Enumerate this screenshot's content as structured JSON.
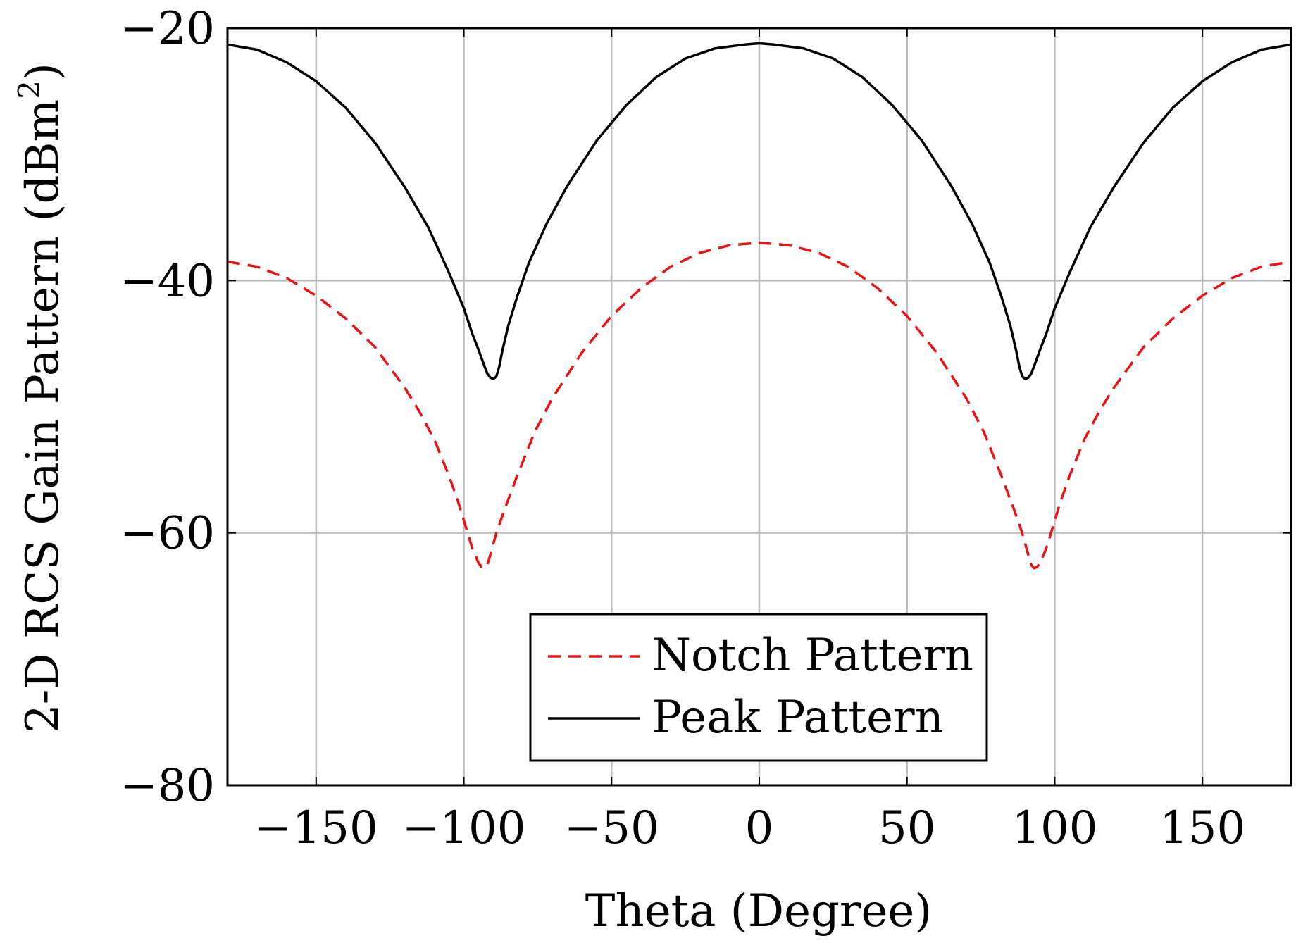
{
  "chart_data": {
    "type": "line",
    "title": "",
    "xlabel": "Theta (Degree)",
    "ylabel": "2-D RCS Gain Pattern (dBm",
    "ylabel_superscript": "2",
    "ylabel_close": ")",
    "xlim": [
      -180,
      180
    ],
    "ylim": [
      -80,
      -20
    ],
    "grid": true,
    "legend_position": "bottom-center",
    "xticks": [
      -150,
      -100,
      -50,
      0,
      50,
      100,
      150
    ],
    "xtick_labels": [
      "−150",
      "−100",
      "−50",
      "0",
      "50",
      "100",
      "150"
    ],
    "yticks": [
      -80,
      -60,
      -40,
      -20
    ],
    "ytick_labels": [
      "−80",
      "−60",
      "−40",
      "−20"
    ],
    "series": [
      {
        "name": "Notch Pattern",
        "color": "#ee1111",
        "style": "dashed",
        "x": [
          -180,
          -170,
          -160,
          -150,
          -140,
          -130,
          -120,
          -115,
          -110,
          -105,
          -102,
          -99,
          -97,
          -95,
          -94,
          -93,
          -92,
          -91,
          -89,
          -86,
          -82,
          -76,
          -70,
          -60,
          -50,
          -40,
          -30,
          -20,
          -10,
          0,
          10,
          20,
          30,
          40,
          50,
          60,
          70,
          76,
          82,
          86,
          89,
          91,
          92,
          93,
          94,
          95,
          97,
          99,
          102,
          105,
          110,
          115,
          120,
          130,
          140,
          150,
          160,
          170,
          180
        ],
        "y": [
          -38.5,
          -38.9,
          -39.8,
          -41.2,
          -43.0,
          -45.3,
          -48.5,
          -50.4,
          -52.6,
          -55.5,
          -57.5,
          -59.8,
          -61.3,
          -62.4,
          -62.7,
          -62.8,
          -62.5,
          -61.7,
          -60.0,
          -58.0,
          -55.5,
          -52.0,
          -49.3,
          -45.7,
          -42.8,
          -40.6,
          -38.9,
          -37.8,
          -37.2,
          -37.0,
          -37.2,
          -37.8,
          -38.9,
          -40.6,
          -42.8,
          -45.7,
          -49.3,
          -52.0,
          -55.5,
          -58.0,
          -60.0,
          -61.7,
          -62.5,
          -62.8,
          -62.7,
          -62.4,
          -61.3,
          -59.8,
          -57.5,
          -55.5,
          -52.6,
          -50.4,
          -48.5,
          -45.3,
          -43.0,
          -41.2,
          -39.8,
          -38.9,
          -38.5
        ]
      },
      {
        "name": "Peak Pattern",
        "color": "#000000",
        "style": "solid",
        "x": [
          -180,
          -170,
          -160,
          -150,
          -140,
          -130,
          -120,
          -112,
          -105,
          -100,
          -97,
          -95,
          -93,
          -92,
          -91,
          -90,
          -89,
          -88,
          -87,
          -85,
          -82,
          -78,
          -72,
          -65,
          -55,
          -45,
          -35,
          -25,
          -15,
          -5,
          0,
          5,
          15,
          25,
          35,
          45,
          55,
          65,
          72,
          78,
          82,
          85,
          87,
          88,
          89,
          90,
          91,
          92,
          93,
          95,
          97,
          100,
          105,
          112,
          120,
          130,
          140,
          150,
          160,
          170,
          180
        ],
        "y": [
          -21.3,
          -21.7,
          -22.7,
          -24.2,
          -26.3,
          -29.1,
          -32.6,
          -35.8,
          -39.4,
          -42.2,
          -44.3,
          -45.5,
          -46.8,
          -47.4,
          -47.7,
          -47.8,
          -47.6,
          -46.8,
          -45.6,
          -43.6,
          -41.3,
          -38.6,
          -35.5,
          -32.5,
          -28.9,
          -26.1,
          -23.9,
          -22.4,
          -21.6,
          -21.3,
          -21.2,
          -21.3,
          -21.6,
          -22.4,
          -23.9,
          -26.1,
          -28.9,
          -32.5,
          -35.5,
          -38.6,
          -41.3,
          -43.6,
          -45.6,
          -46.8,
          -47.6,
          -47.8,
          -47.7,
          -47.4,
          -46.8,
          -45.5,
          -44.3,
          -42.2,
          -39.4,
          -35.8,
          -32.6,
          -29.1,
          -26.3,
          -24.2,
          -22.7,
          -21.7,
          -21.3
        ]
      }
    ]
  }
}
